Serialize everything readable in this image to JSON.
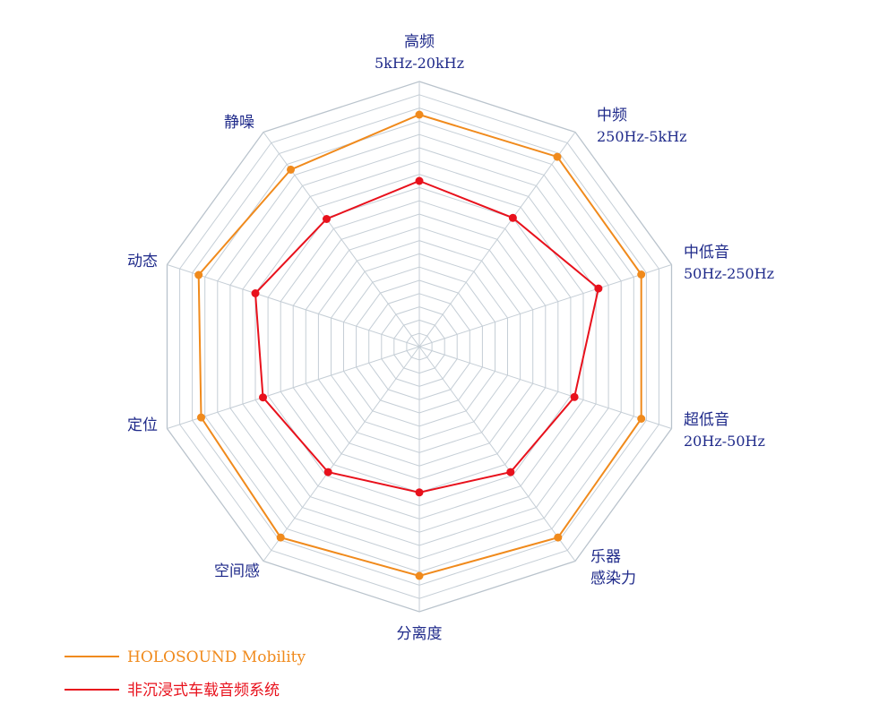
{
  "chart_data": {
    "type": "radar",
    "grid": true,
    "rlim": [
      0,
      20
    ],
    "grid_levels": 20,
    "axes": [
      {
        "label": "高频",
        "sub": "5kHz-20kHz"
      },
      {
        "label": "中频",
        "sub": "250Hz-5kHz"
      },
      {
        "label": "中低音",
        "sub": "50Hz-250Hz"
      },
      {
        "label": "超低音",
        "sub": "20Hz-50Hz"
      },
      {
        "label": "乐器",
        "sub": "感染力"
      },
      {
        "label": "分离度",
        "sub": ""
      },
      {
        "label": "空间感",
        "sub": ""
      },
      {
        "label": "定位",
        "sub": ""
      },
      {
        "label": "动态",
        "sub": ""
      },
      {
        "label": "静噪",
        "sub": ""
      }
    ],
    "series": [
      {
        "name": "HOLOSOUND Mobility",
        "color": "#f08a1c",
        "values": [
          17.5,
          17.7,
          17.6,
          17.6,
          17.8,
          17.3,
          17.8,
          17.3,
          17.5,
          16.5
        ]
      },
      {
        "name": "非沉浸式车载音频系统",
        "color": "#e8111c",
        "values": [
          12.5,
          12.0,
          14.2,
          12.3,
          11.7,
          11.0,
          11.7,
          12.4,
          13.0,
          11.9
        ]
      }
    ],
    "legend_position": "bottom-left"
  }
}
